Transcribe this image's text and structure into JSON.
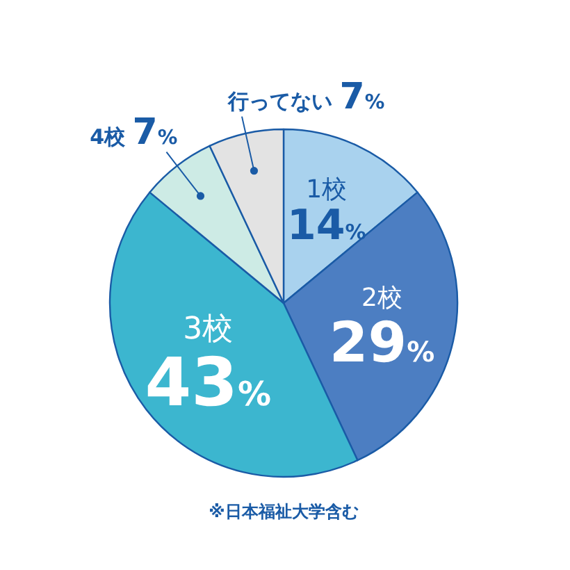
{
  "chart_data": {
    "type": "pie",
    "categories": [
      "1校",
      "2校",
      "3校",
      "4校",
      "行ってない"
    ],
    "values": [
      14,
      29,
      43,
      7,
      7
    ],
    "value_labels": [
      "14%",
      "29%",
      "43%",
      "7%",
      "7%"
    ],
    "colors": [
      "#a9d2ee",
      "#4c7ec2",
      "#3cb6cf",
      "#cdebe5",
      "#e3e3e3"
    ],
    "annotations": [
      "※日本福祉大学含む"
    ]
  }
}
